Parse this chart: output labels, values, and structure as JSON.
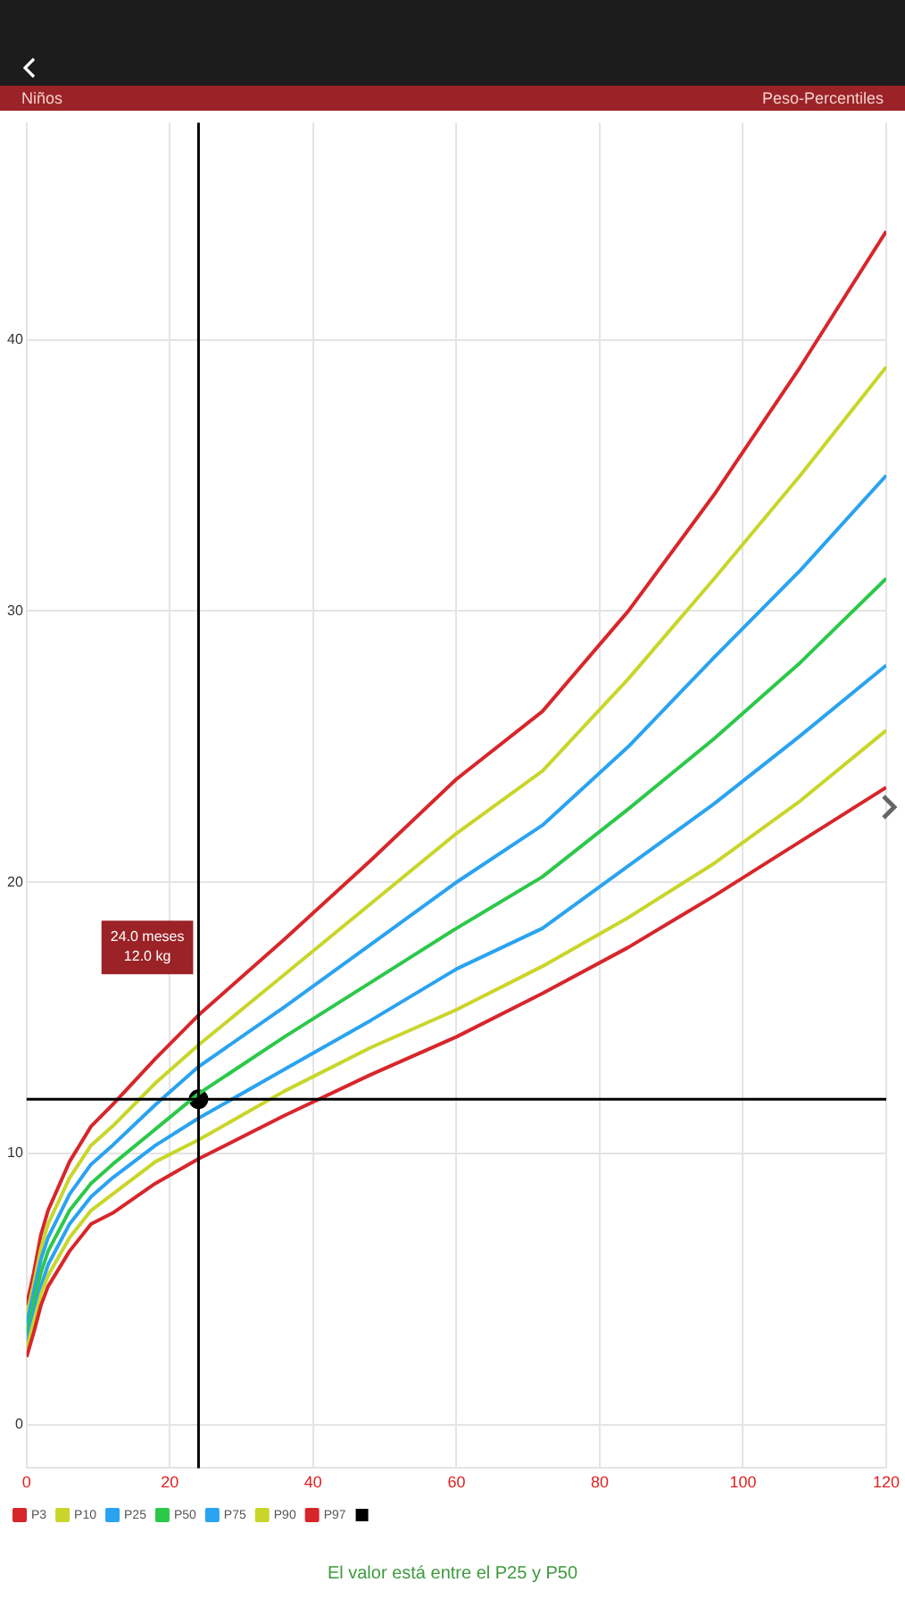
{
  "chart_data": {
    "type": "line",
    "title": "Peso-Percentiles",
    "subtitle": "Niños",
    "x": [
      0,
      1,
      2,
      3,
      6,
      9,
      12,
      18,
      24,
      36,
      48,
      60,
      72,
      84,
      96,
      108,
      120
    ],
    "series": [
      {
        "name": "P3",
        "color": "#d7262b",
        "values": [
          2.5,
          3.4,
          4.4,
          5.1,
          6.4,
          7.4,
          7.8,
          8.9,
          9.8,
          11.4,
          12.9,
          14.3,
          15.9,
          17.6,
          19.5,
          21.5,
          23.5
        ]
      },
      {
        "name": "P10",
        "color": "#c8d62a",
        "values": [
          2.8,
          3.8,
          4.8,
          5.5,
          6.9,
          7.9,
          8.5,
          9.7,
          10.5,
          12.3,
          13.9,
          15.3,
          16.9,
          18.7,
          20.7,
          23.0,
          25.6
        ]
      },
      {
        "name": "P25",
        "color": "#2aa3f0",
        "values": [
          3.0,
          4.1,
          5.1,
          5.9,
          7.4,
          8.4,
          9.1,
          10.3,
          11.3,
          13.1,
          14.9,
          16.8,
          18.3,
          20.6,
          22.9,
          25.4,
          28.0
        ]
      },
      {
        "name": "P50",
        "color": "#2cc84a",
        "values": [
          3.3,
          4.5,
          5.6,
          6.4,
          7.9,
          8.9,
          9.6,
          10.9,
          12.2,
          14.3,
          16.3,
          18.3,
          20.2,
          22.7,
          25.3,
          28.1,
          31.2
        ]
      },
      {
        "name": "P75",
        "color": "#2aa3f0",
        "values": [
          3.7,
          4.9,
          6.1,
          6.9,
          8.5,
          9.6,
          10.3,
          11.8,
          13.2,
          15.4,
          17.7,
          20.0,
          22.1,
          25.0,
          28.3,
          31.5,
          35.0
        ]
      },
      {
        "name": "P90",
        "color": "#c8d62a",
        "values": [
          4.0,
          5.2,
          6.5,
          7.4,
          9.1,
          10.3,
          11.0,
          12.6,
          14.0,
          16.6,
          19.2,
          21.8,
          24.1,
          27.5,
          31.2,
          35.0,
          39.0
        ]
      },
      {
        "name": "P97",
        "color": "#d7262b",
        "values": [
          4.4,
          5.6,
          7.0,
          7.9,
          9.7,
          11.0,
          11.8,
          13.5,
          15.1,
          17.9,
          20.8,
          23.8,
          26.3,
          30.0,
          34.3,
          39.0,
          44.0
        ]
      },
      {
        "type": "scatter",
        "color": "#000000",
        "marker": "circle",
        "x": [
          24
        ],
        "values": [
          12
        ]
      }
    ],
    "xlim": [
      0,
      120
    ],
    "xticks": [
      0,
      20,
      40,
      60,
      80,
      100,
      120
    ],
    "ylim": [
      -1.6,
      48
    ],
    "yticks": [
      0,
      10,
      20,
      30,
      40
    ],
    "grid": true,
    "legend": "bottom left",
    "marker": "none",
    "line_style": "solid",
    "ref_lines": [
      {
        "axis": "x",
        "value": 24,
        "color": "#000000"
      },
      {
        "axis": "y",
        "value": 12,
        "color": "#000000"
      }
    ],
    "annotations": [
      "24.0 meses\n12.0 kg",
      "El valor está entre el P25 y P50"
    ]
  }
}
